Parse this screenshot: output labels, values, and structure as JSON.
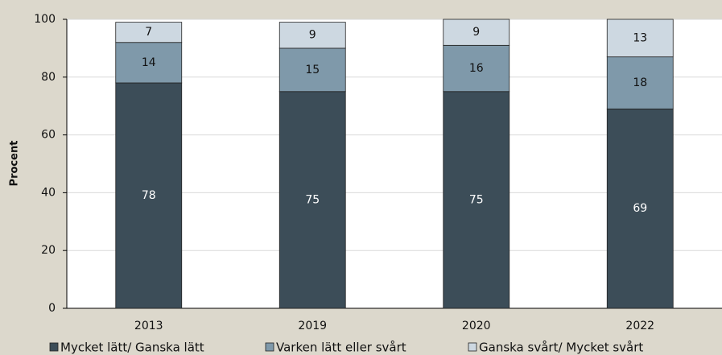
{
  "chart_data": {
    "type": "stacked_bar",
    "y_label": "Procent",
    "categories": [
      "2013",
      "2019",
      "2020",
      "2022"
    ],
    "series": [
      {
        "name": "Mycket lätt/ Ganska lätt",
        "color": "#3c4d58",
        "label_color": "#ffffff",
        "values": [
          78,
          75,
          75,
          69
        ]
      },
      {
        "name": "Varken lätt eller svårt",
        "color": "#7f99aa",
        "label_color": "#111111",
        "values": [
          14,
          15,
          16,
          18
        ]
      },
      {
        "name": "Ganska svårt/ Mycket svårt",
        "color": "#cdd8e1",
        "label_color": "#111111",
        "values": [
          7,
          9,
          9,
          13
        ]
      }
    ],
    "ylim": [
      0,
      100
    ],
    "yticks": [
      0,
      20,
      40,
      60,
      80,
      100
    ],
    "grid": true
  }
}
